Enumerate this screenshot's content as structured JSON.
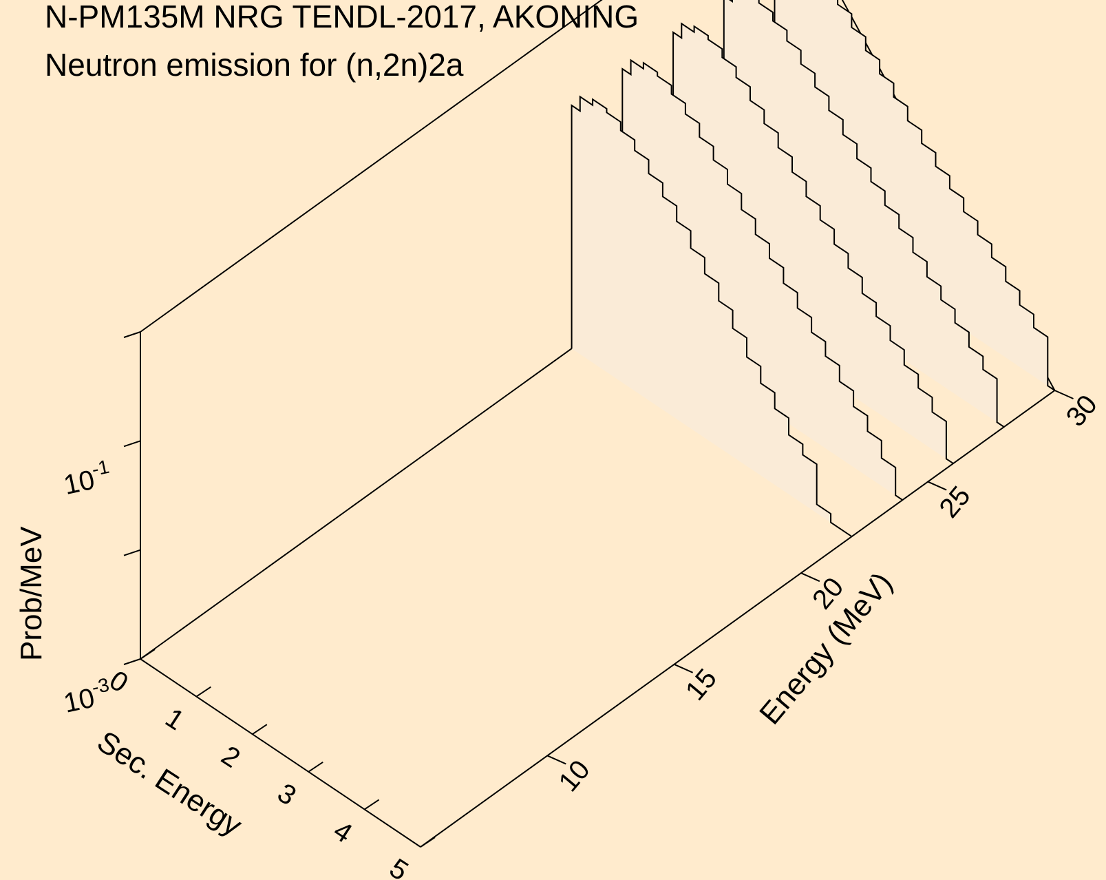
{
  "colors": {
    "background": "#ffebcd",
    "curve_fill": "#faebd7",
    "line": "#000000"
  },
  "chart_data": {
    "type": "area",
    "view": "3d-waterfall",
    "title": "N-PM135M NRG TENDL-2017, AKONING",
    "subtitle": "Neutron emission for (n,2n)2a",
    "xlabel": "Sec. Energy",
    "ylabel": "Energy (MeV)",
    "zlabel": "Prob/MeV",
    "xlim": [
      0,
      5
    ],
    "ylim": [
      5,
      30
    ],
    "zlim": [
      0.001,
      1
    ],
    "zscale": "log",
    "x_ticks": [
      "0",
      "1",
      "2",
      "3",
      "4",
      "5"
    ],
    "y_ticks": [
      "10",
      "15",
      "20",
      "25",
      "30"
    ],
    "z_ticks": [
      {
        "base": "10",
        "exp": "-3"
      },
      {
        "base": "10",
        "exp": "-1"
      }
    ],
    "series": [
      {
        "incident_energy": 22,
        "x": [
          0.05,
          0.25,
          0.5,
          0.75,
          1.0,
          1.25,
          1.5,
          1.75,
          2.0,
          2.25,
          2.5,
          2.75,
          3.0,
          3.25,
          3.5,
          3.75,
          4.0,
          4.25,
          4.5
        ],
        "y": [
          0.17,
          0.23,
          0.26,
          0.24,
          0.2,
          0.16,
          0.12,
          0.09,
          0.065,
          0.045,
          0.032,
          0.022,
          0.015,
          0.01,
          0.007,
          0.005,
          0.0035,
          0.0028,
          0.0012
        ]
      },
      {
        "incident_energy": 24,
        "x": [
          0.05,
          0.25,
          0.5,
          0.75,
          1.0,
          1.25,
          1.5,
          1.75,
          2.0,
          2.25,
          2.5,
          2.75,
          3.0,
          3.25,
          3.5,
          3.75,
          4.0,
          4.25,
          4.5,
          4.75
        ],
        "y": [
          0.17,
          0.23,
          0.26,
          0.24,
          0.2,
          0.16,
          0.12,
          0.09,
          0.066,
          0.047,
          0.034,
          0.025,
          0.018,
          0.013,
          0.0095,
          0.007,
          0.005,
          0.0036,
          0.0026,
          0.0018
        ]
      },
      {
        "incident_energy": 26,
        "x": [
          0.05,
          0.25,
          0.5,
          0.75,
          1.0,
          1.25,
          1.5,
          1.75,
          2.0,
          2.25,
          2.5,
          2.75,
          3.0,
          3.25,
          3.5,
          3.75,
          4.0,
          4.25,
          4.5,
          4.75
        ],
        "y": [
          0.17,
          0.23,
          0.26,
          0.24,
          0.2,
          0.16,
          0.12,
          0.09,
          0.066,
          0.048,
          0.035,
          0.026,
          0.019,
          0.014,
          0.01,
          0.0075,
          0.0055,
          0.004,
          0.003,
          0.0022
        ]
      },
      {
        "incident_energy": 28,
        "x": [
          0.05,
          0.25,
          0.5,
          0.75,
          1.0,
          1.25,
          1.5,
          1.75,
          2.0,
          2.25,
          2.5,
          2.75,
          3.0,
          3.25,
          3.5,
          3.75,
          4.0,
          4.25,
          4.5,
          4.75
        ],
        "y": [
          0.17,
          0.23,
          0.26,
          0.24,
          0.2,
          0.16,
          0.12,
          0.09,
          0.067,
          0.049,
          0.036,
          0.027,
          0.02,
          0.015,
          0.011,
          0.008,
          0.006,
          0.0045,
          0.0033,
          0.0025
        ]
      },
      {
        "incident_energy": 30,
        "x": [
          0.05,
          0.25,
          0.5,
          0.75,
          1.0,
          1.25,
          1.5,
          1.75,
          2.0,
          2.25,
          2.5,
          2.75,
          3.0,
          3.25,
          3.5,
          3.75,
          4.0,
          4.25,
          4.5,
          4.75
        ],
        "y": [
          0.17,
          0.23,
          0.26,
          0.24,
          0.2,
          0.16,
          0.12,
          0.09,
          0.067,
          0.05,
          0.037,
          0.028,
          0.021,
          0.016,
          0.012,
          0.009,
          0.0068,
          0.005,
          0.0037,
          0.0028
        ]
      }
    ]
  }
}
